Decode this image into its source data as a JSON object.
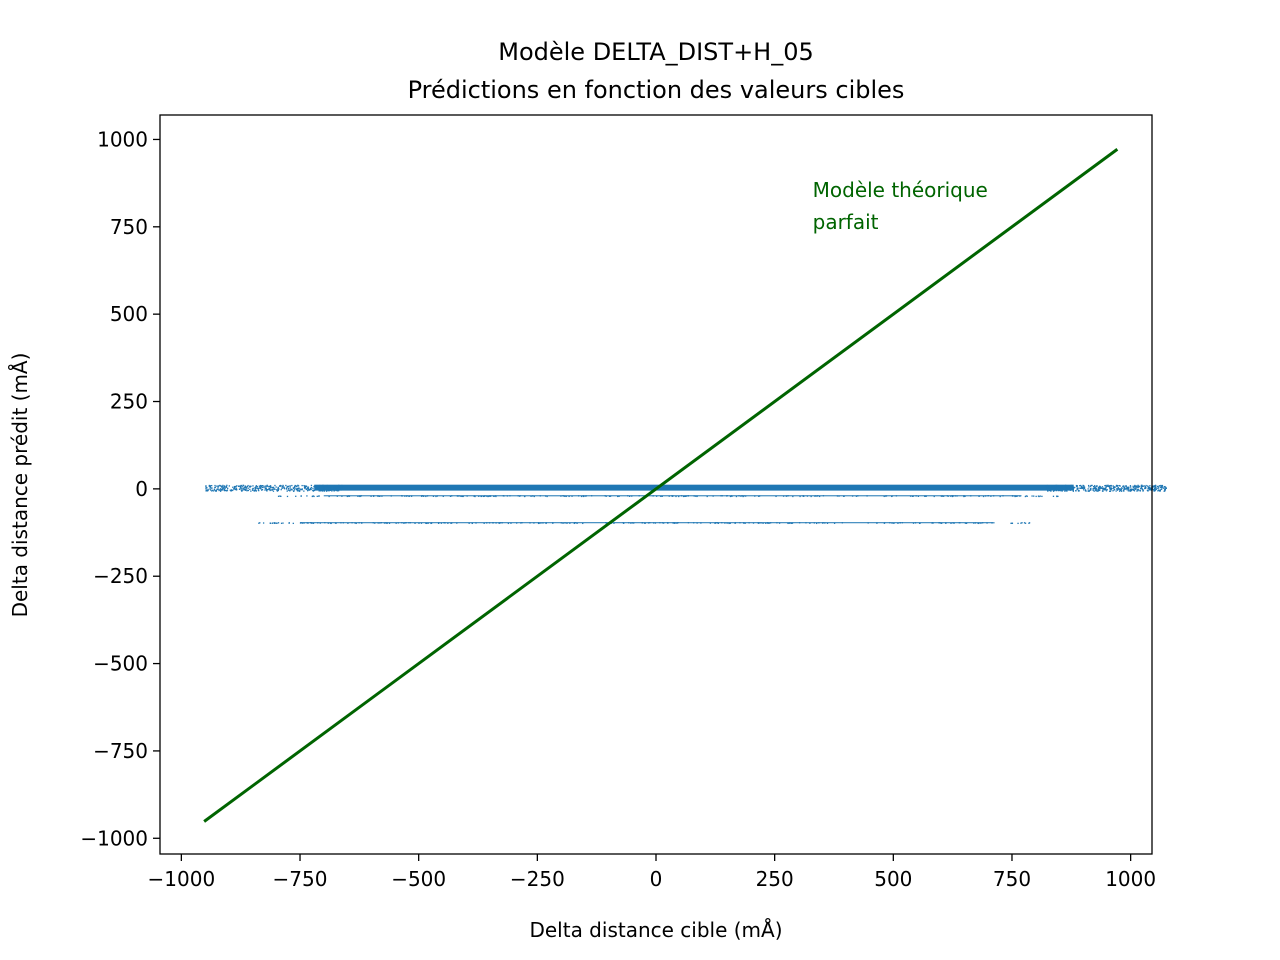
{
  "chart_data": {
    "type": "scatter",
    "title": "Modèle DELTA_DIST+H_05",
    "subtitle": "Prédictions en fonction des valeurs cibles",
    "xlabel": "Delta distance cible (mÅ)",
    "ylabel": "Delta distance prédit (mÅ)",
    "xlim": [
      -1045,
      1045
    ],
    "ylim": [
      -1045,
      1070
    ],
    "xticks": [
      -1000,
      -750,
      -500,
      -250,
      0,
      250,
      500,
      750,
      1000
    ],
    "yticks": [
      -1000,
      -750,
      -500,
      -250,
      0,
      250,
      500,
      750,
      1000
    ],
    "xtick_labels": [
      "−1000",
      "−750",
      "−500",
      "−250",
      "0",
      "250",
      "500",
      "750",
      "1000"
    ],
    "ytick_labels": [
      "−1000",
      "−750",
      "−500",
      "−250",
      "0",
      "250",
      "500",
      "750",
      "1000"
    ],
    "grid": false,
    "series": [
      {
        "type": "scatter",
        "color": "#1f77b4",
        "bands": [
          {
            "x_range": [
              -950,
              1075
            ],
            "y_range": [
              -5,
              12
            ],
            "dense_x_range": [
              -720,
              880
            ]
          },
          {
            "x_range": [
              -800,
              850
            ],
            "y_range": [
              -20,
              -18
            ]
          },
          {
            "x_range": [
              -850,
              790
            ],
            "y_range": [
              -97,
              -95
            ]
          }
        ]
      },
      {
        "type": "line",
        "color": "#006400",
        "label": "Modèle théorique parfait",
        "x": [
          -952,
          972
        ],
        "y": [
          -952,
          972
        ]
      }
    ],
    "annotations": [
      {
        "lines": [
          "Modèle théorique",
          "parfait"
        ],
        "x": 330,
        "y": 835,
        "color": "#006400"
      }
    ]
  }
}
